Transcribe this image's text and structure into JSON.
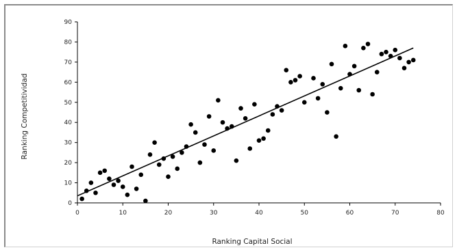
{
  "chart_data": {
    "type": "scatter",
    "xlabel": "Ranking Capital Social",
    "ylabel": "Ranking Competitividad",
    "xlim": [
      0,
      80
    ],
    "ylim": [
      0,
      90
    ],
    "xticks": [
      0,
      10,
      20,
      30,
      40,
      50,
      60,
      70,
      80
    ],
    "yticks": [
      0,
      10,
      20,
      30,
      40,
      50,
      60,
      70,
      80,
      90
    ],
    "grid": false,
    "legend": "none",
    "colors": {
      "points": "#000000",
      "trendline": "#000000",
      "axis": "#000000"
    },
    "points": [
      [
        1,
        2
      ],
      [
        2,
        6
      ],
      [
        3,
        10
      ],
      [
        4,
        5
      ],
      [
        5,
        15
      ],
      [
        6,
        16
      ],
      [
        7,
        12
      ],
      [
        8,
        9
      ],
      [
        9,
        11
      ],
      [
        10,
        8
      ],
      [
        11,
        4
      ],
      [
        12,
        18
      ],
      [
        13,
        7
      ],
      [
        14,
        14
      ],
      [
        15,
        1
      ],
      [
        16,
        24
      ],
      [
        17,
        30
      ],
      [
        18,
        19
      ],
      [
        19,
        22
      ],
      [
        20,
        13
      ],
      [
        21,
        23
      ],
      [
        22,
        17
      ],
      [
        23,
        25
      ],
      [
        24,
        28
      ],
      [
        25,
        39
      ],
      [
        26,
        35
      ],
      [
        27,
        20
      ],
      [
        28,
        29
      ],
      [
        29,
        43
      ],
      [
        30,
        26
      ],
      [
        31,
        51
      ],
      [
        32,
        40
      ],
      [
        33,
        37
      ],
      [
        34,
        38
      ],
      [
        35,
        21
      ],
      [
        36,
        47
      ],
      [
        37,
        42
      ],
      [
        38,
        27
      ],
      [
        39,
        49
      ],
      [
        40,
        31
      ],
      [
        41,
        32
      ],
      [
        42,
        36
      ],
      [
        43,
        44
      ],
      [
        44,
        48
      ],
      [
        45,
        46
      ],
      [
        46,
        66
      ],
      [
        47,
        60
      ],
      [
        48,
        61
      ],
      [
        49,
        63
      ],
      [
        50,
        50
      ],
      [
        52,
        62
      ],
      [
        53,
        52
      ],
      [
        54,
        59
      ],
      [
        55,
        45
      ],
      [
        56,
        69
      ],
      [
        57,
        33
      ],
      [
        58,
        57
      ],
      [
        59,
        78
      ],
      [
        60,
        64
      ],
      [
        61,
        68
      ],
      [
        62,
        56
      ],
      [
        63,
        77
      ],
      [
        64,
        79
      ],
      [
        65,
        54
      ],
      [
        66,
        65
      ],
      [
        67,
        74
      ],
      [
        68,
        75
      ],
      [
        69,
        73
      ],
      [
        70,
        76
      ],
      [
        71,
        72
      ],
      [
        72,
        67
      ],
      [
        73,
        70
      ],
      [
        74,
        71
      ]
    ],
    "trendline": {
      "x": [
        0,
        74
      ],
      "y": [
        3.5,
        77
      ]
    }
  }
}
